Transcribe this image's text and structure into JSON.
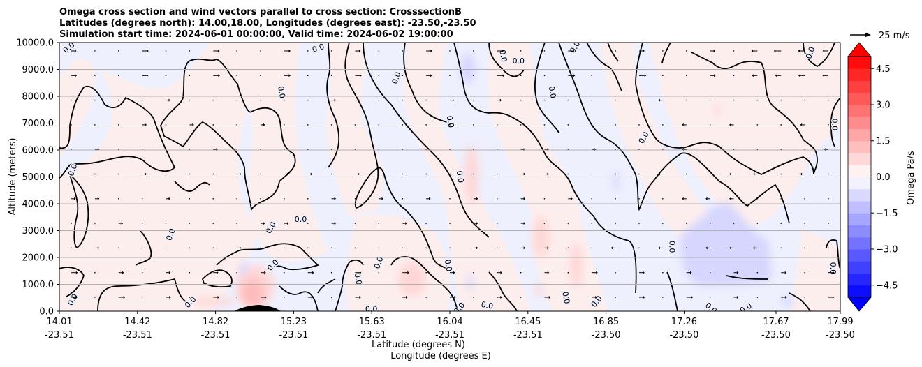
{
  "chart_data": {
    "type": "contourf",
    "title_lines": [
      "Omega cross section and wind vectors parallel to cross section: CrosssectionB",
      "Latitudes (degrees north): 14.00,18.00, Longitudes (degrees east): -23.50,-23.50",
      "Simulation start time: 2024-06-01 00:00:00, Valid time: 2024-06-02 19:00:00"
    ],
    "ylabel": "Altitude (meters)",
    "xlabel_lat": "Latitude (degrees N)",
    "xlabel_lon": "Longitude (degrees E)",
    "ylim": [
      0,
      10000
    ],
    "yticks": [
      "0.0",
      "1000.0",
      "2000.0",
      "3000.0",
      "4000.0",
      "5000.0",
      "6000.0",
      "7000.0",
      "8000.0",
      "9000.0",
      "10000.0"
    ],
    "xticks_lat": [
      "14.01",
      "14.42",
      "14.82",
      "15.23",
      "15.63",
      "16.04",
      "16.45",
      "16.85",
      "17.26",
      "17.67",
      "17.99"
    ],
    "xticks_lon": [
      "-23.51",
      "-23.51",
      "-23.51",
      "-23.51",
      "-23.51",
      "-23.51",
      "-23.51",
      "-23.50",
      "-23.50",
      "-23.50",
      "-23.50"
    ],
    "xlim_lat": [
      14.01,
      17.99
    ],
    "grid": "horizontal",
    "colorbar": {
      "label": "Omega Pa/s",
      "range": [
        -5.0,
        5.0
      ],
      "ticks": [
        "4.5",
        "3.0",
        "1.5",
        "0.0",
        "−1.5",
        "−3.0",
        "−4.5"
      ],
      "extend": "both",
      "colormap": "bwr",
      "low_color": "#0000ff",
      "mid_color": "#ffffff",
      "high_color": "#ff0000"
    },
    "contour_label": "0.0",
    "quiver_key": {
      "label": "25 m/s",
      "speed": 25
    },
    "omega_regions": [
      {
        "sign": "positive",
        "lat": 15.0,
        "alt": 600,
        "level": 1.0
      },
      {
        "sign": "positive",
        "lat": 15.85,
        "alt": 1200,
        "level": 0.8
      },
      {
        "sign": "positive",
        "lat": 16.12,
        "alt": 5000,
        "level": 0.6
      },
      {
        "sign": "positive",
        "lat": 16.55,
        "alt": 2800,
        "level": 0.7
      },
      {
        "sign": "positive",
        "lat": 16.68,
        "alt": 1800,
        "level": 0.6
      },
      {
        "sign": "positive",
        "lat": 14.95,
        "alt": 400,
        "level": 0.4
      },
      {
        "sign": "negative",
        "lat": 17.35,
        "alt": 2600,
        "level": -0.5
      },
      {
        "sign": "negative",
        "lat": 16.25,
        "alt": 9100,
        "level": -0.4
      },
      {
        "sign": "negative",
        "lat": 15.1,
        "alt": 1400,
        "level": -0.3
      }
    ],
    "terrain": {
      "peak_lat": 15.01,
      "peak_alt": 250
    },
    "contour_labels": [
      {
        "text": "0.0",
        "lat": 14.06,
        "alt": 9800,
        "rot": -40
      },
      {
        "text": "0.0",
        "lat": 14.08,
        "alt": 5250,
        "rot": -70
      },
      {
        "text": "0.0",
        "lat": 14.58,
        "alt": 2850,
        "rot": -70
      },
      {
        "text": "0.0",
        "lat": 14.08,
        "alt": 420,
        "rot": -60
      },
      {
        "text": "0.0",
        "lat": 14.68,
        "alt": 320,
        "rot": -45
      },
      {
        "text": "0.0",
        "lat": 15.14,
        "alt": 8150,
        "rot": 80
      },
      {
        "text": "0.0",
        "lat": 15.09,
        "alt": 3100,
        "rot": -60
      },
      {
        "text": "0.0",
        "lat": 15.1,
        "alt": 1700,
        "rot": -45
      },
      {
        "text": "0.0",
        "lat": 15.24,
        "alt": 3400,
        "rot": 0
      },
      {
        "text": "0.0",
        "lat": 15.33,
        "alt": 9780,
        "rot": -20
      },
      {
        "text": "0.0",
        "lat": 15.53,
        "alt": 1200,
        "rot": 80
      },
      {
        "text": "0.0",
        "lat": 15.64,
        "alt": 1800,
        "rot": -70
      },
      {
        "text": "0.0",
        "lat": 15.73,
        "alt": 8680,
        "rot": -70
      },
      {
        "text": "0.0",
        "lat": 15.6,
        "alt": 60,
        "rot": 0
      },
      {
        "text": "0.0",
        "lat": 16.0,
        "alt": 7050,
        "rot": 80
      },
      {
        "text": "0.0",
        "lat": 16.05,
        "alt": 5000,
        "rot": 80
      },
      {
        "text": "0.0",
        "lat": 15.99,
        "alt": 1700,
        "rot": 80
      },
      {
        "text": "0.0",
        "lat": 16.05,
        "alt": 100,
        "rot": -50
      },
      {
        "text": "0.0",
        "lat": 16.27,
        "alt": 9500,
        "rot": 80
      },
      {
        "text": "0.0",
        "lat": 16.35,
        "alt": 9300,
        "rot": 0
      },
      {
        "text": "0.0",
        "lat": 16.19,
        "alt": 200,
        "rot": 10
      },
      {
        "text": "0.0",
        "lat": 16.52,
        "alt": 8150,
        "rot": 80
      },
      {
        "text": "0.0",
        "lat": 16.64,
        "alt": 9820,
        "rot": -60
      },
      {
        "text": "0.0",
        "lat": 16.59,
        "alt": 500,
        "rot": 80
      },
      {
        "text": "0.0",
        "lat": 16.75,
        "alt": 350,
        "rot": -50
      },
      {
        "text": "0.0",
        "lat": 16.99,
        "alt": 6450,
        "rot": -60
      },
      {
        "text": "0.0",
        "lat": 17.13,
        "alt": 2400,
        "rot": 90
      },
      {
        "text": "0.0",
        "lat": 17.33,
        "alt": 100,
        "rot": 40
      },
      {
        "text": "0.0",
        "lat": 17.84,
        "alt": 9610,
        "rot": -70
      },
      {
        "text": "0.0",
        "lat": 17.96,
        "alt": 6950,
        "rot": 90
      },
      {
        "text": "0.0",
        "lat": 17.95,
        "alt": 1600,
        "rot": 90
      },
      {
        "text": "0.0",
        "lat": 17.51,
        "alt": 100,
        "rot": -30
      }
    ]
  }
}
